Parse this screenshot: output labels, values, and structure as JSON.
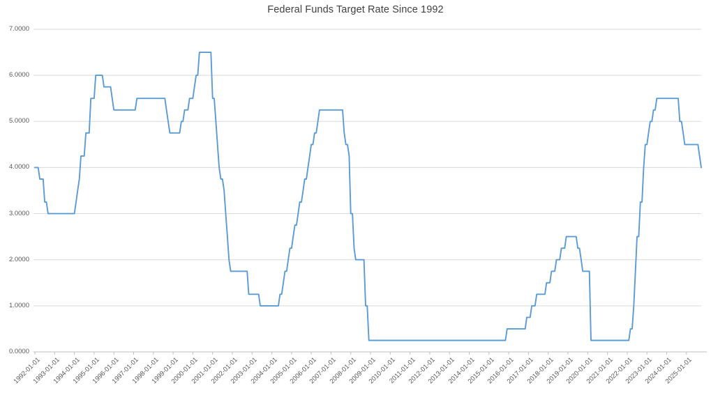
{
  "chart_data": {
    "type": "line",
    "title": "Federal Funds Target Rate Since 1992",
    "xlabel": "",
    "ylabel": "",
    "ylim": [
      0,
      7
    ],
    "grid": true,
    "legend": "none",
    "line_color": "#5B9BD5",
    "grid_color": "#D9D9D9",
    "axis_color": "#BFBFBF",
    "label_color": "#595959",
    "title_color": "#404040",
    "y_tick_labels": [
      "7.0000",
      "6.0000",
      "5.0000",
      "4.0000",
      "3.0000",
      "2.0000",
      "1.0000",
      "0.0000"
    ],
    "x_tick_labels": [
      "1992-01-01",
      "1993-01-01",
      "1994-01-01",
      "1995-01-01",
      "1996-01-01",
      "1997-01-01",
      "1998-01-01",
      "1999-01-01",
      "2000-01-01",
      "2001-01-01",
      "2002-01-01",
      "2003-01-01",
      "2004-01-01",
      "2005-01-01",
      "2006-01-01",
      "2007-01-01",
      "2008-01-01",
      "2009-01-01",
      "2010-01-01",
      "2011-01-01",
      "2012-01-01",
      "2013-01-01",
      "2014-01-01",
      "2015-01-01",
      "2016-01-01",
      "2017-01-01",
      "2018-01-01",
      "2019-01-01",
      "2020-01-01",
      "2021-01-01",
      "2022-01-01",
      "2023-01-01",
      "2024-01-01",
      "2025-01-01"
    ],
    "x_range": [
      "1992-01",
      "2025-10"
    ],
    "points": [
      [
        "1992-01-01",
        4.0
      ],
      [
        "1992-04-09",
        3.75
      ],
      [
        "1992-07-02",
        3.25
      ],
      [
        "1992-09-04",
        3.0
      ],
      [
        "1994-02-04",
        3.25
      ],
      [
        "1994-03-22",
        3.5
      ],
      [
        "1994-04-18",
        3.75
      ],
      [
        "1994-05-17",
        4.25
      ],
      [
        "1994-08-16",
        4.75
      ],
      [
        "1994-11-15",
        5.5
      ],
      [
        "1995-02-01",
        6.0
      ],
      [
        "1995-07-06",
        5.75
      ],
      [
        "1995-12-19",
        5.5
      ],
      [
        "1996-01-31",
        5.25
      ],
      [
        "1997-03-25",
        5.5
      ],
      [
        "1998-09-29",
        5.25
      ],
      [
        "1998-10-15",
        5.0
      ],
      [
        "1998-11-17",
        4.75
      ],
      [
        "1999-06-30",
        5.0
      ],
      [
        "1999-08-24",
        5.25
      ],
      [
        "1999-11-16",
        5.5
      ],
      [
        "2000-02-02",
        5.75
      ],
      [
        "2000-03-21",
        6.0
      ],
      [
        "2000-05-16",
        6.5
      ],
      [
        "2001-01-03",
        6.0
      ],
      [
        "2001-01-31",
        5.5
      ],
      [
        "2001-03-20",
        5.0
      ],
      [
        "2001-04-18",
        4.5
      ],
      [
        "2001-05-15",
        4.0
      ],
      [
        "2001-06-27",
        3.75
      ],
      [
        "2001-08-21",
        3.5
      ],
      [
        "2001-09-17",
        3.0
      ],
      [
        "2001-10-02",
        2.5
      ],
      [
        "2001-11-06",
        2.0
      ],
      [
        "2001-12-11",
        1.75
      ],
      [
        "2002-11-06",
        1.25
      ],
      [
        "2003-06-25",
        1.0
      ],
      [
        "2004-06-30",
        1.25
      ],
      [
        "2004-08-10",
        1.5
      ],
      [
        "2004-09-21",
        1.75
      ],
      [
        "2004-11-10",
        2.0
      ],
      [
        "2004-12-14",
        2.25
      ],
      [
        "2005-02-02",
        2.5
      ],
      [
        "2005-03-22",
        2.75
      ],
      [
        "2005-05-03",
        3.0
      ],
      [
        "2005-06-30",
        3.25
      ],
      [
        "2005-08-09",
        3.5
      ],
      [
        "2005-09-20",
        3.75
      ],
      [
        "2005-11-01",
        4.0
      ],
      [
        "2005-12-13",
        4.25
      ],
      [
        "2006-01-31",
        4.5
      ],
      [
        "2006-03-28",
        4.75
      ],
      [
        "2006-05-10",
        5.0
      ],
      [
        "2006-06-29",
        5.25
      ],
      [
        "2007-09-18",
        4.75
      ],
      [
        "2007-10-31",
        4.5
      ],
      [
        "2007-12-11",
        4.25
      ],
      [
        "2008-01-22",
        3.5
      ],
      [
        "2008-01-30",
        3.0
      ],
      [
        "2008-03-18",
        2.25
      ],
      [
        "2008-04-30",
        2.0
      ],
      [
        "2008-10-08",
        1.5
      ],
      [
        "2008-10-29",
        1.0
      ],
      [
        "2008-12-16",
        0.25
      ],
      [
        "2015-12-16",
        0.5
      ],
      [
        "2016-12-14",
        0.75
      ],
      [
        "2017-03-15",
        1.0
      ],
      [
        "2017-06-14",
        1.25
      ],
      [
        "2017-12-13",
        1.5
      ],
      [
        "2018-03-21",
        1.75
      ],
      [
        "2018-06-13",
        2.0
      ],
      [
        "2018-09-26",
        2.25
      ],
      [
        "2018-12-19",
        2.5
      ],
      [
        "2019-07-31",
        2.25
      ],
      [
        "2019-09-18",
        2.0
      ],
      [
        "2019-10-30",
        1.75
      ],
      [
        "2020-03-03",
        1.25
      ],
      [
        "2020-03-15",
        0.25
      ],
      [
        "2022-03-16",
        0.5
      ],
      [
        "2022-05-04",
        1.0
      ],
      [
        "2022-06-15",
        1.75
      ],
      [
        "2022-07-27",
        2.5
      ],
      [
        "2022-09-21",
        3.25
      ],
      [
        "2022-11-02",
        4.0
      ],
      [
        "2022-12-14",
        4.5
      ],
      [
        "2023-02-01",
        4.75
      ],
      [
        "2023-03-22",
        5.0
      ],
      [
        "2023-05-03",
        5.25
      ],
      [
        "2023-07-26",
        5.5
      ],
      [
        "2024-09-18",
        5.0
      ],
      [
        "2024-11-07",
        4.75
      ],
      [
        "2024-12-18",
        4.5
      ],
      [
        "2025-09-17",
        4.25
      ],
      [
        "2025-10-29",
        4.0
      ]
    ]
  }
}
